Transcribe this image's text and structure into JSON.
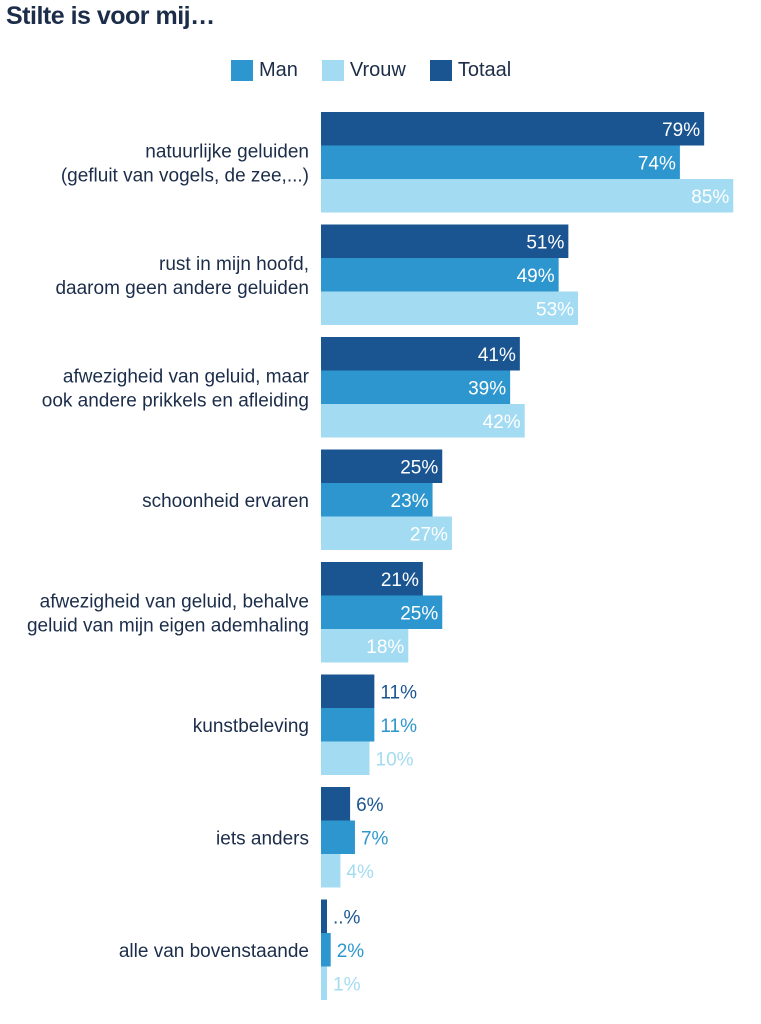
{
  "title": "Stilte is voor mij…",
  "legend": [
    {
      "label": "Man",
      "color": "#2e96ce"
    },
    {
      "label": "Vrouw",
      "color": "#a3dcf2"
    },
    {
      "label": "Totaal",
      "color": "#1a5592"
    }
  ],
  "chart_data": {
    "type": "bar",
    "orientation": "horizontal",
    "title": "Stilte is voor mij…",
    "categories": [
      [
        "natuurlijke geluiden",
        "(gefluit van vogels, de zee,...)"
      ],
      [
        "rust in mijn hoofd,",
        "daarom geen andere geluiden"
      ],
      [
        "afwezigheid van geluid, maar",
        "ook andere prikkels en afleiding"
      ],
      [
        "schoonheid ervaren"
      ],
      [
        "afwezigheid van geluid, behalve",
        "geluid van mijn eigen ademhaling"
      ],
      [
        "kunstbeleving"
      ],
      [
        "iets anders"
      ],
      [
        "alle van bovenstaande"
      ]
    ],
    "series": [
      {
        "name": "Totaal",
        "color": "#1a5592",
        "values": [
          79,
          51,
          41,
          25,
          21,
          11,
          6,
          1
        ],
        "labels": [
          "79%",
          "51%",
          "41%",
          "25%",
          "21%",
          "11%",
          "6%",
          "..%"
        ]
      },
      {
        "name": "Man",
        "color": "#2e96ce",
        "values": [
          74,
          49,
          39,
          23,
          25,
          11,
          7,
          2
        ],
        "labels": [
          "74%",
          "49%",
          "39%",
          "23%",
          "25%",
          "11%",
          "7%",
          "2%"
        ]
      },
      {
        "name": "Vrouw",
        "color": "#a3dcf2",
        "values": [
          85,
          53,
          42,
          27,
          18,
          10,
          4,
          1
        ],
        "labels": [
          "85%",
          "53%",
          "42%",
          "27%",
          "18%",
          "10%",
          "4%",
          "1%"
        ]
      }
    ],
    "xlim": [
      0,
      100
    ],
    "grid": false,
    "legend_position": "top"
  }
}
